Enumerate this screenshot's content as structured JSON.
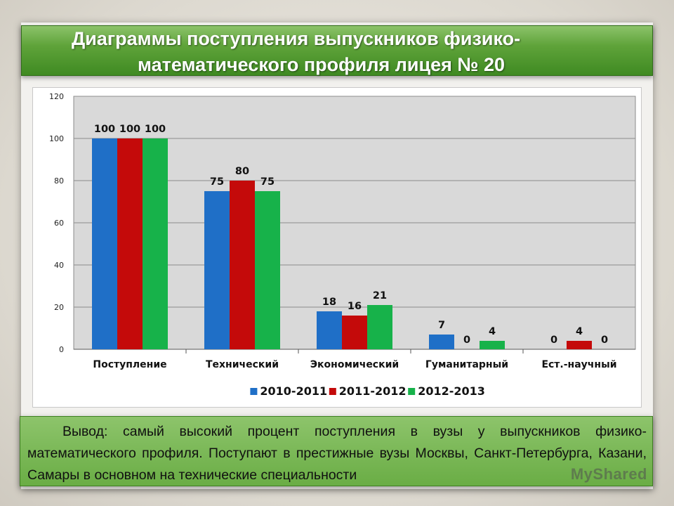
{
  "title": {
    "line1": "Диаграммы поступления выпускников физико-",
    "line2": "математического профиля лицея № 20"
  },
  "chart_data": {
    "type": "bar",
    "categories": [
      "Поступление",
      "Технический",
      "Экономический",
      "Гуманитарный",
      "Ест.-научный"
    ],
    "series": [
      {
        "name": "2010-2011",
        "color": "#1f6fc7",
        "values": [
          100,
          75,
          18,
          7,
          0
        ]
      },
      {
        "name": "2011-2012",
        "color": "#c40a0a",
        "values": [
          100,
          80,
          16,
          0,
          4
        ]
      },
      {
        "name": "2012-2013",
        "color": "#17b24a",
        "values": [
          100,
          75,
          21,
          4,
          0
        ]
      }
    ],
    "yticks": [
      "0",
      "20",
      "40",
      "60",
      "80",
      "100",
      "120"
    ],
    "ylim": [
      0,
      120
    ],
    "grid": true,
    "legend": "bottom"
  },
  "conclusion": "Вывод: самый высокий процент поступления в вузы у выпускников физико-математического профиля. Поступают в престижные вузы Москвы, Санкт-Петербурга, Казани, Самары в основном на технические специальности",
  "watermark": "MyShared"
}
